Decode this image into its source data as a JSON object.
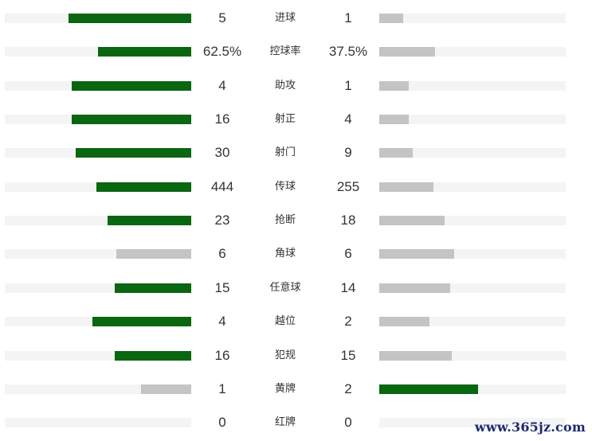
{
  "colors": {
    "leading": "#0a6610",
    "trailing": "#c4c4c4",
    "track": "#f4f4f4"
  },
  "stats": [
    {
      "label": "进球",
      "home": "5",
      "away": "1",
      "home_share": 0.66,
      "away_share": 0.13,
      "leader": "home"
    },
    {
      "label": "控球率",
      "home": "62.5%",
      "away": "37.5%",
      "home_share": 0.5,
      "away_share": 0.3,
      "leader": "home"
    },
    {
      "label": "助攻",
      "home": "4",
      "away": "1",
      "home_share": 0.64,
      "away_share": 0.16,
      "leader": "home"
    },
    {
      "label": "射正",
      "home": "16",
      "away": "4",
      "home_share": 0.64,
      "away_share": 0.16,
      "leader": "home"
    },
    {
      "label": "射门",
      "home": "30",
      "away": "9",
      "home_share": 0.62,
      "away_share": 0.18,
      "leader": "home"
    },
    {
      "label": "传球",
      "home": "444",
      "away": "255",
      "home_share": 0.51,
      "away_share": 0.29,
      "leader": "home"
    },
    {
      "label": "抢断",
      "home": "23",
      "away": "18",
      "home_share": 0.45,
      "away_share": 0.35,
      "leader": "home"
    },
    {
      "label": "角球",
      "home": "6",
      "away": "6",
      "home_share": 0.4,
      "away_share": 0.4,
      "leader": "none"
    },
    {
      "label": "任意球",
      "home": "15",
      "away": "14",
      "home_share": 0.41,
      "away_share": 0.38,
      "leader": "home"
    },
    {
      "label": "越位",
      "home": "4",
      "away": "2",
      "home_share": 0.53,
      "away_share": 0.27,
      "leader": "home"
    },
    {
      "label": "犯规",
      "home": "16",
      "away": "15",
      "home_share": 0.41,
      "away_share": 0.39,
      "leader": "home"
    },
    {
      "label": "黄牌",
      "home": "1",
      "away": "2",
      "home_share": 0.27,
      "away_share": 0.53,
      "leader": "away"
    },
    {
      "label": "红牌",
      "home": "0",
      "away": "0",
      "home_share": 0,
      "away_share": 0,
      "leader": "none"
    }
  ],
  "watermark": "www.365jz.com"
}
